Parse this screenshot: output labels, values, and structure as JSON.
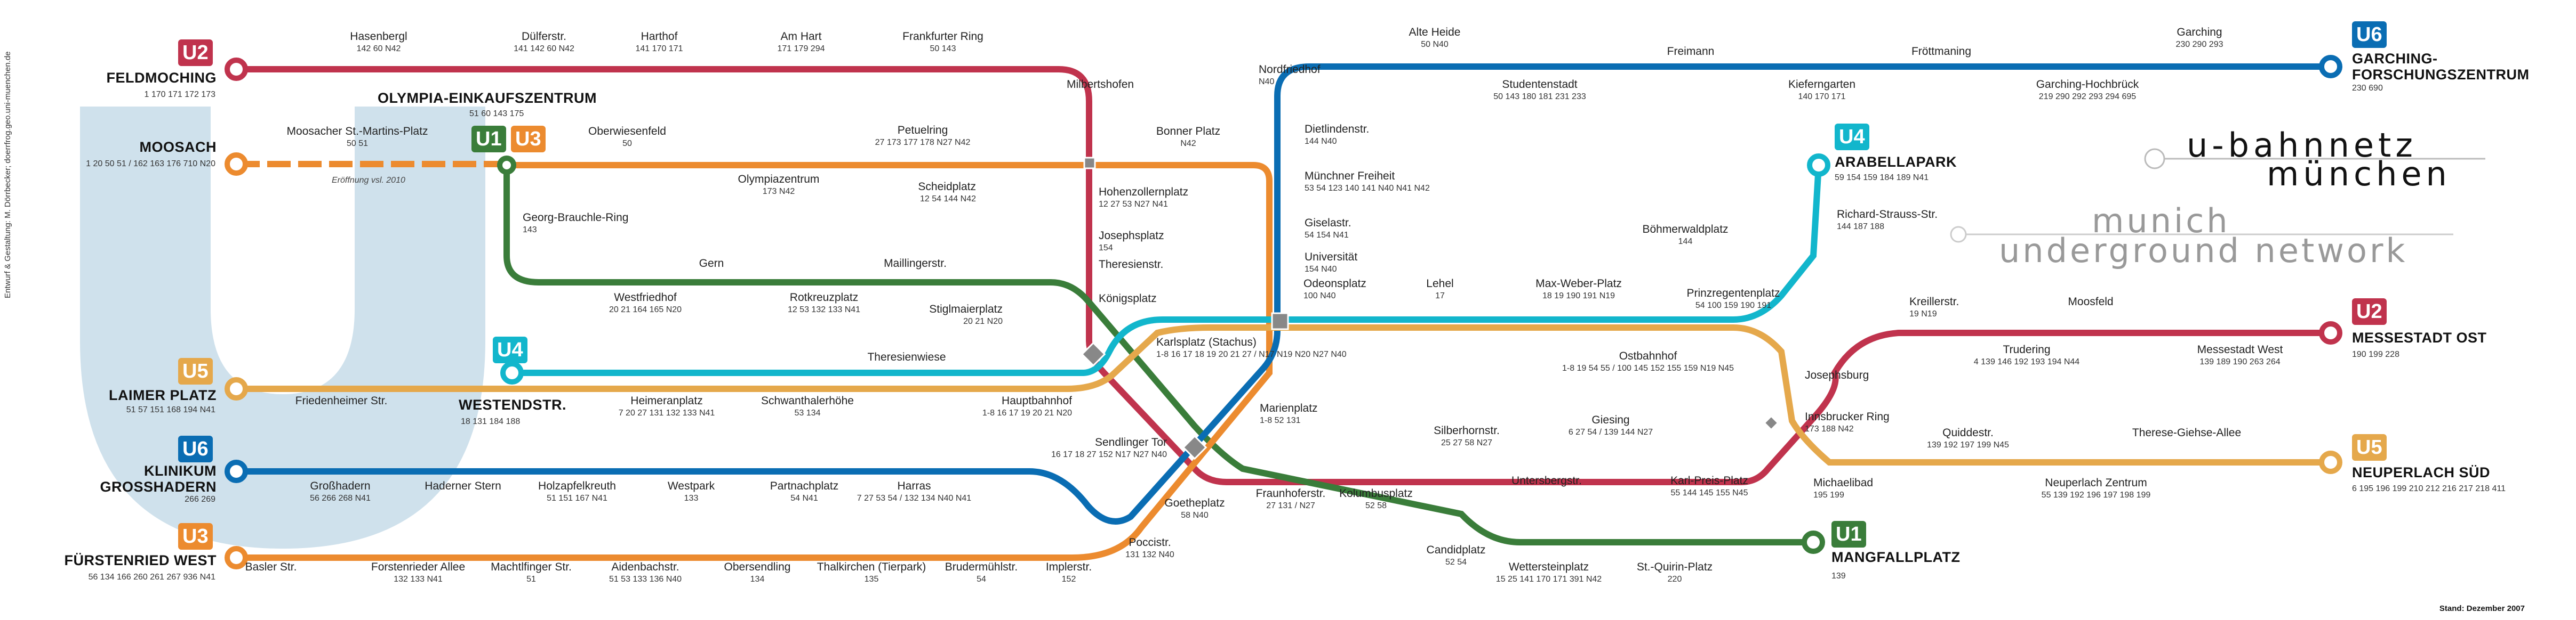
{
  "title": {
    "line1": "u-bahnnetz",
    "line2": "münchen",
    "line3": "munich",
    "line4": "underground network"
  },
  "side_credit": "Entwurf & Gestaltung: M. Dörrbecker; doerrfrog.geo.uni-muenchen.de",
  "stand": "Stand: Dezember 2007",
  "colors": {
    "U1": "#3a7d3a",
    "U2": "#c0334d",
    "U3": "#ec8b2f",
    "U4": "#12b6cc",
    "U5": "#e5a84b",
    "U6": "#0a6db3",
    "watermark": "#cfe1ec"
  },
  "badges": {
    "u2_west": "U2",
    "u6_west": "U6",
    "u5_west": "U5",
    "u3_west": "U3",
    "u4_west": "U4",
    "u1": "U1",
    "u3": "U3",
    "u6_east": "U6",
    "u4_east": "U4",
    "u2_east": "U2",
    "u5_east": "U5",
    "u1_south": "U1"
  },
  "terminals": {
    "feldmoching": "FELDMOCHING",
    "moosach": "MOOSACH",
    "laimer_platz": "LAIMER PLATZ",
    "klinikum": "KLINIKUM\nGROSSHADERN",
    "fuerstenried": "FÜRSTENRIED WEST",
    "westendstr": "WESTENDSTR.",
    "oez": "OLYMPIA-EINKAUFSZENTRUM",
    "garching": "GARCHING-\nFORSCHUNGSZENTRUM",
    "arabellapark": "ARABELLAPARK",
    "messestadt": "MESSESTADT OST",
    "neuperlach_sued": "NEUPERLACH SÜD",
    "mangfallplatz": "MANGFALLPLATZ"
  },
  "terminal_conn": {
    "feldmoching": "1 170 171 172 173",
    "moosach": "1 20 50 51 / 162 163 176 710 N20",
    "laimer_platz": "51 57 151 168 194 N41",
    "klinikum": "266 269",
    "fuerstenried": "56 134 166 260 261 267 936 N41",
    "westendstr": "18 131 184 188",
    "oez": "51 60 143 175",
    "garching": "230 690",
    "arabellapark": "59 154 159 184 189 N41",
    "messestadt": "190 199 228",
    "neuperlach_sued": "6 195 196 199 210 212 216 217 218 411",
    "mangfallplatz": "139"
  },
  "eroeffnung": "Eröffnung vsl. 2010",
  "stations": [
    {
      "n": "Hasenbergl",
      "c": "142 60 N42"
    },
    {
      "n": "Dülferstr.",
      "c": "141 142 60 N42"
    },
    {
      "n": "Harthof",
      "c": "141 170 171"
    },
    {
      "n": "Am Hart",
      "c": "171 179 294"
    },
    {
      "n": "Frankfurter Ring",
      "c": "50 143"
    },
    {
      "n": "Milbertshofen",
      "c": ""
    },
    {
      "n": "Moosacher St.-Martins-Platz",
      "c": "50 51"
    },
    {
      "n": "Oberwiesenfeld",
      "c": "50"
    },
    {
      "n": "Petuelring",
      "c": "27 173 177 178 N27 N42"
    },
    {
      "n": "Bonner Platz",
      "c": "N42"
    },
    {
      "n": "Olympiazentrum",
      "c": "173 N42"
    },
    {
      "n": "Scheidplatz",
      "c": "12 54 144 N42"
    },
    {
      "n": "Hohenzollernplatz",
      "c": "12 27 53 N27 N41"
    },
    {
      "n": "Josephsplatz",
      "c": "154"
    },
    {
      "n": "Theresienstr.",
      "c": ""
    },
    {
      "n": "Königsplatz",
      "c": ""
    },
    {
      "n": "Georg-Brauchle-Ring",
      "c": "143"
    },
    {
      "n": "Gern",
      "c": ""
    },
    {
      "n": "Maillingerstr.",
      "c": ""
    },
    {
      "n": "Westfriedhof",
      "c": "20 21 164 165 N20"
    },
    {
      "n": "Rotkreuzplatz",
      "c": "12 53 132 133 N41"
    },
    {
      "n": "Stiglmaierplatz",
      "c": "20 21 N20"
    },
    {
      "n": "Theresienwiese",
      "c": ""
    },
    {
      "n": "Friedenheimer Str.",
      "c": ""
    },
    {
      "n": "Heimeranplatz",
      "c": "7 20 27 131 132 133 N41"
    },
    {
      "n": "Schwanthalerhöhe",
      "c": "53 134"
    },
    {
      "n": "Hauptbahnhof",
      "c": "1-8 16 17 19 20 21 N20"
    },
    {
      "n": "Karlsplatz (Stachus)",
      "c": "1-8 16 17 18 19 20 21 27 / N17 N19 N20 N27 N40"
    },
    {
      "n": "Sendlinger Tor",
      "c": "16 17 18 27 152 N17 N27 N40"
    },
    {
      "n": "Marienplatz",
      "c": "1-8 52 131"
    },
    {
      "n": "Goetheplatz",
      "c": "58 N40"
    },
    {
      "n": "Poccistr.",
      "c": "131 132 N40"
    },
    {
      "n": "Großhadern",
      "c": "56 266 268 N41"
    },
    {
      "n": "Haderner Stern",
      "c": ""
    },
    {
      "n": "Holzapfelkreuth",
      "c": "51 151 167 N41"
    },
    {
      "n": "Westpark",
      "c": "133"
    },
    {
      "n": "Partnachplatz",
      "c": "54 N41"
    },
    {
      "n": "Harras",
      "c": "7 27 53 54 / 132 134 N40 N41"
    },
    {
      "n": "Basler Str.",
      "c": ""
    },
    {
      "n": "Forstenrieder Allee",
      "c": "132 133 N41"
    },
    {
      "n": "Machtlfinger Str.",
      "c": "51"
    },
    {
      "n": "Aidenbachstr.",
      "c": "51 53 133 136 N40"
    },
    {
      "n": "Obersendling",
      "c": "134"
    },
    {
      "n": "Thalkirchen (Tierpark)",
      "c": "135"
    },
    {
      "n": "Brudermühlstr.",
      "c": "54"
    },
    {
      "n": "Implerstr.",
      "c": "152"
    },
    {
      "n": "Nordfriedhof",
      "c": "N40"
    },
    {
      "n": "Alte Heide",
      "c": "50 N40"
    },
    {
      "n": "Studentenstadt",
      "c": "50 143 180 181 231 233"
    },
    {
      "n": "Freimann",
      "c": ""
    },
    {
      "n": "Kieferngarten",
      "c": "140 170 171"
    },
    {
      "n": "Fröttmaning",
      "c": ""
    },
    {
      "n": "Garching-Hochbrück",
      "c": "219 290 292 293 294 695"
    },
    {
      "n": "Garching",
      "c": "230 290 293"
    },
    {
      "n": "Dietlindenstr.",
      "c": "144 N40"
    },
    {
      "n": "Münchner Freiheit",
      "c": "53 54 123 140 141 N40 N41 N42"
    },
    {
      "n": "Giselastr.",
      "c": "54 154 N41"
    },
    {
      "n": "Universität",
      "c": "154 N40"
    },
    {
      "n": "Odeonsplatz",
      "c": "100 N40"
    },
    {
      "n": "Lehel",
      "c": "17"
    },
    {
      "n": "Max-Weber-Platz",
      "c": "18 19 190 191 N19"
    },
    {
      "n": "Böhmerwaldplatz",
      "c": "144"
    },
    {
      "n": "Richard-Strauss-Str.",
      "c": "144 187 188"
    },
    {
      "n": "Prinzregentenplatz",
      "c": "54 100 159 190 191"
    },
    {
      "n": "Ostbahnhof",
      "c": "1-8 19 54 55 / 100 145 152 155 159 N19 N45"
    },
    {
      "n": "Kreillerstr.",
      "c": "19 N19"
    },
    {
      "n": "Moosfeld",
      "c": ""
    },
    {
      "n": "Trudering",
      "c": "4 139 146 192 193 194 N44"
    },
    {
      "n": "Messestadt West",
      "c": "139 189 190 263 264"
    },
    {
      "n": "Josephsburg",
      "c": ""
    },
    {
      "n": "Silberhornstr.",
      "c": "25 27 58 N27"
    },
    {
      "n": "Giesing",
      "c": "6 27 54 / 139 144 N27"
    },
    {
      "n": "Innsbrucker Ring",
      "c": "173 188 N42"
    },
    {
      "n": "Quiddestr.",
      "c": "139 192 197 199 N45"
    },
    {
      "n": "Therese-Giehse-Allee",
      "c": ""
    },
    {
      "n": "Michaelibad",
      "c": "195 199"
    },
    {
      "n": "Neuperlach Zentrum",
      "c": "55 139 192 196 197 198 199"
    },
    {
      "n": "Untersbergstr.",
      "c": ""
    },
    {
      "n": "Karl-Preis-Platz",
      "c": "55 144 145 155 N45"
    },
    {
      "n": "Fraunhoferstr.",
      "c": "27 131 / N27"
    },
    {
      "n": "Kolumbusplatz",
      "c": "52 58"
    },
    {
      "n": "Candidplatz",
      "c": "52 54"
    },
    {
      "n": "Wettersteinplatz",
      "c": "15 25 141 170 171 391 N42"
    },
    {
      "n": "St.-Quirin-Platz",
      "c": "220"
    }
  ]
}
